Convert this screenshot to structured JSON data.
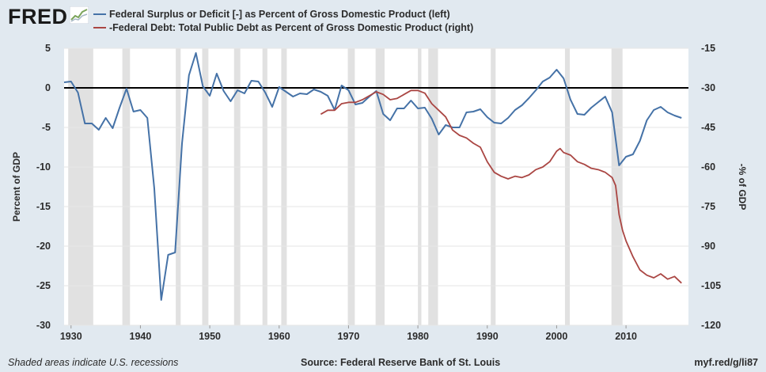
{
  "logo": {
    "text": "FRED"
  },
  "footer": {
    "note": "Shaded areas indicate U.S. recessions",
    "source": "Source: Federal Reserve Bank of St. Louis",
    "url": "myf.red/g/li87"
  },
  "colors": {
    "background": "#e1e9f0",
    "plot_background": "#ffffff",
    "surplus": "#4572a7",
    "debt": "#aa4643",
    "recession": "#e1e1e1",
    "zero_line": "#000000"
  },
  "chart_data": {
    "type": "line",
    "xlim": [
      1929,
      2019
    ],
    "x_ticks": [
      1930,
      1940,
      1950,
      1960,
      1970,
      1980,
      1990,
      2000,
      2010
    ],
    "left_axis": {
      "label": "Percent of GDP",
      "ylim": [
        -30,
        5
      ],
      "ticks": [
        5,
        0,
        -5,
        -10,
        -15,
        -20,
        -25,
        -30
      ]
    },
    "right_axis": {
      "label": "-% of GDP",
      "ylim": [
        -120,
        -15
      ],
      "ticks": [
        -15,
        -30,
        -45,
        -60,
        -75,
        -90,
        -105,
        -120
      ]
    },
    "legend": [
      "Federal Surplus or Deficit [-] as Percent of Gross Domestic Product (left)",
      "-Federal Debt: Total Public Debt as Percent of Gross Domestic Product (right)"
    ],
    "recessions": [
      [
        1929.6,
        1933.2
      ],
      [
        1937.4,
        1938.5
      ],
      [
        1945.1,
        1945.8
      ],
      [
        1948.9,
        1949.8
      ],
      [
        1953.5,
        1954.4
      ],
      [
        1957.6,
        1958.3
      ],
      [
        1960.3,
        1961.1
      ],
      [
        1969.9,
        1970.9
      ],
      [
        1973.9,
        1975.2
      ],
      [
        1980.0,
        1980.5
      ],
      [
        1981.5,
        1982.9
      ],
      [
        1990.5,
        1991.2
      ],
      [
        2001.2,
        2001.9
      ],
      [
        2007.9,
        2009.5
      ]
    ],
    "series": [
      {
        "name": "Federal Surplus or Deficit [-] as Percent of Gross Domestic Product (left)",
        "axis": "left",
        "x": [
          1929,
          1930,
          1931,
          1932,
          1933,
          1934,
          1935,
          1936,
          1937,
          1938,
          1939,
          1940,
          1941,
          1942,
          1943,
          1944,
          1945,
          1946,
          1947,
          1948,
          1949,
          1950,
          1951,
          1952,
          1953,
          1954,
          1955,
          1956,
          1957,
          1958,
          1959,
          1960,
          1961,
          1962,
          1963,
          1964,
          1965,
          1966,
          1967,
          1968,
          1969,
          1970,
          1971,
          1972,
          1973,
          1974,
          1975,
          1976,
          1977,
          1978,
          1979,
          1980,
          1981,
          1982,
          1983,
          1984,
          1985,
          1986,
          1987,
          1988,
          1989,
          1990,
          1991,
          1992,
          1993,
          1994,
          1995,
          1996,
          1997,
          1998,
          1999,
          2000,
          2001,
          2002,
          2003,
          2004,
          2005,
          2006,
          2007,
          2008,
          2009,
          2010,
          2011,
          2012,
          2013,
          2014,
          2015,
          2016,
          2017,
          2018
        ],
        "y": [
          0.7,
          0.8,
          -0.6,
          -4.5,
          -4.5,
          -5.3,
          -3.8,
          -5.1,
          -2.5,
          -0.1,
          -3.0,
          -2.8,
          -3.8,
          -12.7,
          -26.8,
          -21.1,
          -20.8,
          -7.0,
          1.6,
          4.4,
          0.2,
          -1.0,
          1.8,
          -0.4,
          -1.7,
          -0.3,
          -0.7,
          0.9,
          0.8,
          -0.6,
          -2.4,
          0.1,
          -0.5,
          -1.1,
          -0.7,
          -0.8,
          -0.2,
          -0.5,
          -1.0,
          -2.8,
          0.3,
          -0.3,
          -2.1,
          -1.9,
          -1.1,
          -0.4,
          -3.3,
          -4.1,
          -2.6,
          -2.6,
          -1.6,
          -2.6,
          -2.5,
          -3.9,
          -5.9,
          -4.7,
          -5.0,
          -5.0,
          -3.1,
          -3.0,
          -2.7,
          -3.7,
          -4.4,
          -4.5,
          -3.8,
          -2.8,
          -2.2,
          -1.3,
          -0.3,
          0.8,
          1.3,
          2.3,
          1.2,
          -1.5,
          -3.3,
          -3.4,
          -2.5,
          -1.8,
          -1.1,
          -3.1,
          -9.8,
          -8.7,
          -8.4,
          -6.7,
          -4.1,
          -2.8,
          -2.4,
          -3.1,
          -3.5,
          -3.8
        ]
      },
      {
        "name": "-Federal Debt: Total Public Debt as Percent of Gross Domestic Product (right)",
        "axis": "right",
        "x": [
          1966,
          1967,
          1968,
          1969,
          1970,
          1971,
          1972,
          1973,
          1974,
          1975,
          1976,
          1977,
          1978,
          1979,
          1980,
          1981,
          1982,
          1983,
          1984,
          1985,
          1986,
          1987,
          1988,
          1989,
          1990,
          1991,
          1992,
          1993,
          1994,
          1995,
          1996,
          1997,
          1998,
          1999,
          2000,
          2000.5,
          2001,
          2002,
          2003,
          2004,
          2005,
          2006,
          2007,
          2008,
          2008.5,
          2009,
          2009.5,
          2010,
          2011,
          2012,
          2013,
          2014,
          2015,
          2016,
          2017,
          2018
        ],
        "y": [
          -40.0,
          -38.5,
          -38.5,
          -36.0,
          -35.5,
          -35.5,
          -34.5,
          -33.0,
          -31.5,
          -32.5,
          -34.5,
          -34.0,
          -32.5,
          -31.0,
          -31.0,
          -32.0,
          -36.0,
          -38.5,
          -41.0,
          -46.0,
          -48.0,
          -49.0,
          -51.0,
          -52.5,
          -58.0,
          -62.0,
          -63.5,
          -64.5,
          -63.5,
          -64.0,
          -63.0,
          -61.0,
          -60.0,
          -58.0,
          -54.0,
          -53.0,
          -54.5,
          -55.5,
          -58.0,
          -59.0,
          -60.5,
          -61.0,
          -62.0,
          -64.0,
          -67.0,
          -78.0,
          -84.0,
          -88.0,
          -94.0,
          -99.0,
          -101.0,
          -102.0,
          -100.5,
          -102.5,
          -101.5,
          -104.0
        ]
      }
    ]
  }
}
